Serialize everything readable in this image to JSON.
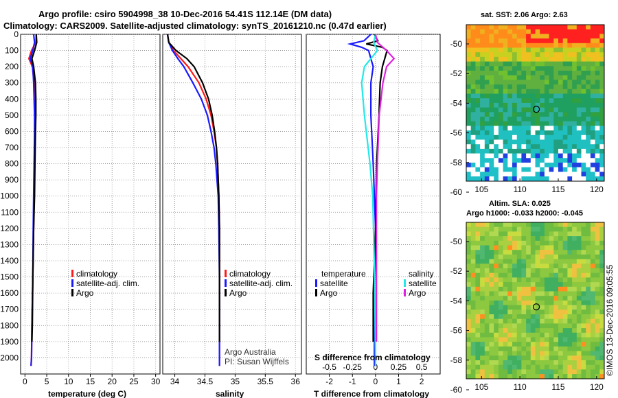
{
  "header": {
    "title_line1": "Argo profile: csiro 5904998_38 10-Dec-2016 54.41S 112.14E (DM data)",
    "title_line2": "Climatology: CARS2009. Satellite-adjusted climatology: synTS_20161210.nc (0.47d earlier)"
  },
  "colors": {
    "climatology": "#ff1a1a",
    "satellite": "#1a1aff",
    "argo": "#000000",
    "sal_satellite": "#22e8e8",
    "sal_argo": "#e020e0"
  },
  "legends": {
    "temperature": [
      "climatology",
      "satellite-adj. clim.",
      "Argo"
    ],
    "salinity": [
      "climatology",
      "satellite-adj. clim.",
      "Argo"
    ],
    "difference_left_title": "temperature",
    "difference_left": [
      "satellite",
      "Argo"
    ],
    "difference_right_title": "salinity",
    "difference_right": [
      "satellite",
      "Argo"
    ]
  },
  "annotations": {
    "credit1": "Argo Australia",
    "credit2": "PI: Susan Wijffels",
    "s_diff_label": "S difference from climatology"
  },
  "maps": {
    "sst_title": "sat. SST: 2.06 Argo: 2.63",
    "sla_title1": "Altim. SLA: 0.025",
    "sla_title2": "Argo h1000: -0.033 h2000: -0.045",
    "lat_ticks": [
      "-50",
      "-52",
      "-54",
      "-56",
      "-58",
      "-60"
    ],
    "lon_ticks": [
      "105",
      "110",
      "115",
      "120"
    ],
    "float_position": {
      "lon": 112.14,
      "lat": -54.41
    },
    "watermark": "©IMOS 13-Dec-2016 09:05:55"
  },
  "chart_data": [
    {
      "type": "line",
      "title": "",
      "xlabel": "temperature (deg C)",
      "ylabel": "",
      "xlim": [
        -1,
        31
      ],
      "ylim": [
        2100,
        0
      ],
      "xticks": [
        "0",
        "5",
        "10",
        "15",
        "20",
        "25",
        "30"
      ],
      "yticks": [
        "0",
        "100",
        "200",
        "300",
        "400",
        "500",
        "600",
        "700",
        "800",
        "900",
        "1000",
        "1100",
        "1200",
        "1300",
        "1400",
        "1500",
        "1600",
        "1700",
        "1800",
        "1900",
        "2000"
      ],
      "grid": true,
      "series": [
        {
          "name": "climatology",
          "depth": [
            0,
            50,
            100,
            150,
            200,
            300,
            400,
            500,
            600,
            800,
            1000,
            1200,
            1500,
            1800,
            2000,
            2050
          ],
          "values": [
            2.6,
            2.5,
            1.5,
            0.9,
            1.7,
            2.1,
            2.3,
            2.3,
            2.3,
            2.2,
            2.1,
            2.0,
            1.8,
            1.6,
            1.5,
            1.4
          ]
        },
        {
          "name": "satellite-adj. clim.",
          "depth": [
            0,
            50,
            100,
            150,
            200,
            300,
            400,
            500,
            600,
            800,
            1000,
            1200,
            1500,
            1800,
            2000,
            2050
          ],
          "values": [
            2.0,
            2.2,
            1.8,
            1.2,
            1.8,
            2.0,
            2.1,
            2.2,
            2.2,
            2.1,
            2.0,
            1.9,
            1.8,
            1.6,
            1.5,
            1.4
          ]
        },
        {
          "name": "Argo",
          "depth": [
            0,
            50,
            100,
            150,
            200,
            300,
            400,
            500,
            600,
            800,
            1000,
            1200,
            1500,
            1800,
            1900
          ],
          "values": [
            2.6,
            2.7,
            2.2,
            1.6,
            2.0,
            2.4,
            2.5,
            2.5,
            2.4,
            2.3,
            2.2,
            2.0,
            1.8,
            1.7,
            1.6
          ]
        }
      ]
    },
    {
      "type": "line",
      "title": "",
      "xlabel": "salinity",
      "ylabel": "",
      "xlim": [
        33.8,
        36.1
      ],
      "ylim": [
        2100,
        0
      ],
      "xticks": [
        "34",
        "34.5",
        "35",
        "35.5",
        "36"
      ],
      "grid": true,
      "series": [
        {
          "name": "climatology",
          "depth": [
            0,
            50,
            100,
            150,
            200,
            300,
            400,
            500,
            600,
            700,
            800,
            1000,
            1200,
            1500,
            1800,
            2000,
            2050
          ],
          "values": [
            33.88,
            33.9,
            33.98,
            34.1,
            34.22,
            34.4,
            34.52,
            34.6,
            34.65,
            34.69,
            34.71,
            34.73,
            34.74,
            34.74,
            34.74,
            34.74,
            34.74
          ]
        },
        {
          "name": "satellite-adj. clim.",
          "depth": [
            0,
            50,
            100,
            150,
            200,
            300,
            400,
            500,
            600,
            700,
            800,
            1000,
            1200,
            1500,
            1800,
            2000,
            2050
          ],
          "values": [
            33.88,
            33.9,
            33.96,
            34.05,
            34.15,
            34.3,
            34.44,
            34.54,
            34.6,
            34.65,
            34.68,
            34.72,
            34.73,
            34.74,
            34.74,
            34.74,
            34.74
          ]
        },
        {
          "name": "Argo",
          "depth": [
            0,
            50,
            100,
            150,
            200,
            300,
            400,
            500,
            600,
            700,
            800,
            1000,
            1200,
            1500,
            1800,
            1900
          ],
          "values": [
            33.88,
            33.9,
            34.02,
            34.2,
            34.32,
            34.46,
            34.56,
            34.62,
            34.66,
            34.69,
            34.71,
            34.73,
            34.74,
            34.74,
            34.74,
            34.74
          ]
        }
      ]
    },
    {
      "type": "line",
      "title": "",
      "xlabel": "T difference from climatology",
      "secondary_xlabel": "S difference from climatology",
      "xlim": [
        -3,
        2.8
      ],
      "secondary_xlim": [
        -0.75,
        0.7
      ],
      "ylim": [
        2100,
        0
      ],
      "xticks": [
        "-2",
        "-1",
        "0",
        "1",
        "2"
      ],
      "secondary_xticks": [
        "-0.5",
        "-0.25",
        "0",
        "0.25",
        "0.5"
      ],
      "grid": true,
      "series": [
        {
          "name": "temperature satellite",
          "axis": "T",
          "depth": [
            0,
            40,
            60,
            80,
            100,
            150,
            200,
            300,
            500,
            800,
            1200,
            1600,
            2000,
            2050
          ],
          "values": [
            -0.2,
            -0.5,
            -1.1,
            -0.6,
            -0.3,
            -0.2,
            -0.1,
            -0.2,
            -0.2,
            -0.1,
            0.0,
            -0.05,
            -0.05,
            -0.05
          ]
        },
        {
          "name": "temperature Argo",
          "axis": "T",
          "depth": [
            0,
            40,
            60,
            80,
            100,
            150,
            200,
            300,
            500,
            800,
            1200,
            1600,
            1900
          ],
          "values": [
            -0.05,
            0.1,
            -0.4,
            0.3,
            0.5,
            0.4,
            0.3,
            0.2,
            0.15,
            0.05,
            0.0,
            -0.1,
            -0.1
          ]
        },
        {
          "name": "salinity satellite",
          "axis": "S",
          "depth": [
            0,
            50,
            100,
            150,
            200,
            300,
            500,
            800,
            1000,
            1500,
            2000,
            2050
          ],
          "values": [
            0.0,
            -0.02,
            0.02,
            -0.05,
            -0.12,
            -0.15,
            -0.12,
            -0.06,
            -0.03,
            -0.01,
            0.0,
            0.0
          ]
        },
        {
          "name": "salinity Argo",
          "axis": "S",
          "depth": [
            0,
            50,
            100,
            150,
            200,
            300,
            500,
            800,
            1000,
            1500,
            1900
          ],
          "values": [
            0.0,
            0.02,
            0.12,
            0.2,
            0.12,
            0.08,
            0.04,
            0.02,
            0.01,
            0.01,
            0.01
          ]
        }
      ]
    }
  ]
}
